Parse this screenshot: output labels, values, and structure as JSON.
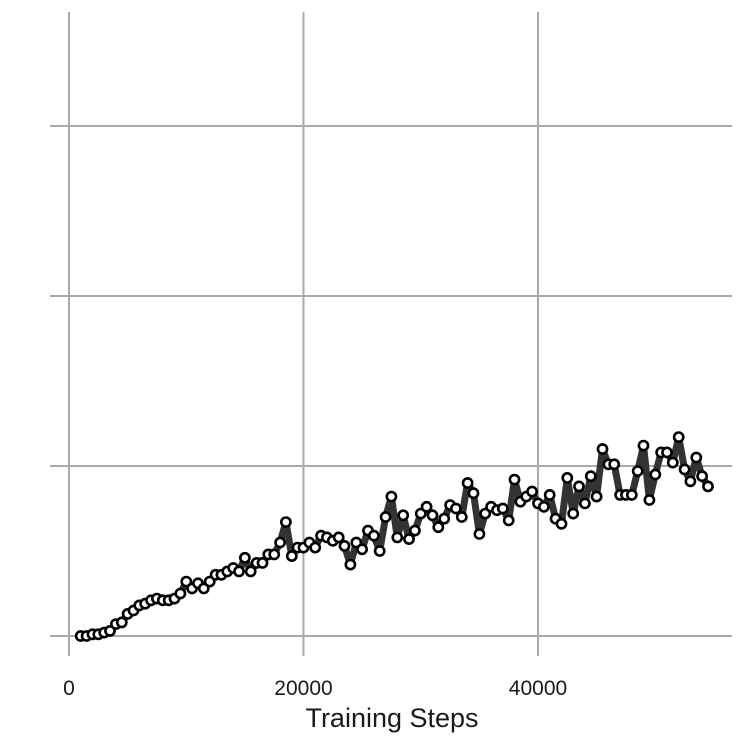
{
  "chart_data": {
    "type": "line",
    "title": "",
    "xlabel": "Training Steps",
    "ylabel": "",
    "xlim": [
      0,
      56000
    ],
    "ylim": [
      0,
      3
    ],
    "xticks": [
      0,
      20000,
      40000
    ],
    "xtick_labels": [
      "0",
      "20000",
      "40000"
    ],
    "yticks": [
      0,
      1,
      2,
      3
    ],
    "ytick_labels": [],
    "grid": true,
    "legend": "none",
    "colors": {
      "line": "#333333",
      "marker_fill": "#ffffff",
      "marker_edge": "#000000",
      "grid": "#a9a9a9"
    },
    "series": [
      {
        "marker": "circle",
        "x": [
          1000,
          1500,
          2000,
          2500,
          3000,
          3500,
          4000,
          4500,
          5000,
          5500,
          6000,
          6500,
          7000,
          7500,
          8000,
          8500,
          9000,
          9500,
          10000,
          10500,
          11000,
          11500,
          12000,
          12500,
          13000,
          13500,
          14000,
          14500,
          15000,
          15500,
          16000,
          16500,
          17000,
          17500,
          18000,
          18500,
          19000,
          19500,
          20000,
          20500,
          21000,
          21500,
          22000,
          22500,
          23000,
          23500,
          24000,
          24500,
          25000,
          25500,
          26000,
          26500,
          27000,
          27500,
          28000,
          28500,
          29000,
          29500,
          30000,
          30500,
          31000,
          31500,
          32000,
          32500,
          33000,
          33500,
          34000,
          34500,
          35000,
          35500,
          36000,
          36500,
          37000,
          37500,
          38000,
          38500,
          39000,
          39500,
          40000,
          40500,
          41000,
          41500,
          42000,
          42500,
          43000,
          43500,
          44000,
          44500,
          45000,
          45500,
          46000,
          46500,
          47000,
          47500,
          48000,
          48500,
          49000,
          49500,
          50000,
          50500,
          51000,
          51500,
          52000,
          52500,
          53000,
          53500,
          54000,
          54500
        ],
        "y": [
          0.0,
          0.0,
          0.01,
          0.01,
          0.02,
          0.03,
          0.07,
          0.08,
          0.13,
          0.15,
          0.18,
          0.19,
          0.21,
          0.22,
          0.21,
          0.21,
          0.22,
          0.25,
          0.32,
          0.28,
          0.31,
          0.28,
          0.32,
          0.36,
          0.36,
          0.38,
          0.4,
          0.38,
          0.46,
          0.38,
          0.43,
          0.43,
          0.48,
          0.48,
          0.55,
          0.67,
          0.47,
          0.52,
          0.52,
          0.55,
          0.52,
          0.59,
          0.58,
          0.56,
          0.58,
          0.53,
          0.42,
          0.55,
          0.51,
          0.62,
          0.59,
          0.5,
          0.7,
          0.82,
          0.58,
          0.71,
          0.57,
          0.62,
          0.72,
          0.76,
          0.71,
          0.64,
          0.69,
          0.77,
          0.75,
          0.7,
          0.9,
          0.84,
          0.6,
          0.72,
          0.76,
          0.74,
          0.75,
          0.68,
          0.92,
          0.79,
          0.82,
          0.85,
          0.78,
          0.76,
          0.83,
          0.69,
          0.66,
          0.93,
          0.72,
          0.88,
          0.78,
          0.94,
          0.82,
          1.1,
          1.01,
          1.01,
          0.83,
          0.83,
          0.83,
          0.97,
          1.12,
          0.8,
          0.95,
          1.08,
          1.08,
          1.02,
          1.17,
          0.98,
          0.91,
          1.05,
          0.94,
          0.88
        ]
      }
    ]
  }
}
